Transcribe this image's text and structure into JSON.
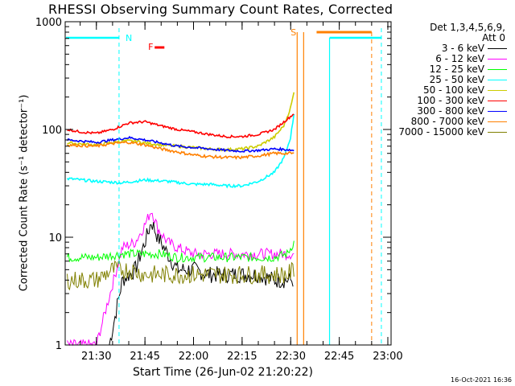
{
  "chart_data": {
    "type": "line",
    "title": "RHESSI Observing Summary Count Rates, Corrected",
    "ylabel": "Corrected Count Rate (s⁻¹ detector⁻¹)",
    "xlabel": "Start Time (26-Jun-02 21:20:22)",
    "yscale": "log",
    "ylim": [
      1,
      1000
    ],
    "xlim": [
      "21:20:22",
      "23:01:00"
    ],
    "xticks": [
      "21:30",
      "21:45",
      "22:00",
      "22:15",
      "22:30",
      "22:45",
      "23:00"
    ],
    "yticks": [
      "1",
      "10",
      "100",
      "1000"
    ],
    "legend_header": [
      "Det 1,3,4,5,6,9,",
      "Att 0"
    ],
    "legend_position": "outside-right",
    "timestamp": "16-Oct-2021 16:36",
    "flags": {
      "N": "N",
      "F": "F",
      "S": "S"
    },
    "series": [
      {
        "name": "3 - 6 keV",
        "color": "#000000",
        "times": [
          "21:34",
          "21:38",
          "21:42",
          "21:45",
          "21:47",
          "21:49",
          "21:52",
          "21:55",
          "22:00",
          "22:05",
          "22:10",
          "22:15",
          "22:20",
          "22:25",
          "22:29",
          "22:31"
        ],
        "values": [
          1.0,
          4,
          5,
          9,
          14,
          10,
          7,
          5,
          5,
          4.5,
          4.5,
          4.5,
          4.5,
          4,
          4,
          4
        ]
      },
      {
        "name": "6 - 12 keV",
        "color": "#ff00ff",
        "times": [
          "21:21",
          "21:30",
          "21:38",
          "21:42",
          "21:45",
          "21:47",
          "21:49",
          "21:52",
          "21:55",
          "22:00",
          "22:05",
          "22:10",
          "22:15",
          "22:20",
          "22:25",
          "22:29",
          "22:31"
        ],
        "values": [
          1.0,
          1.0,
          8,
          9,
          13,
          18,
          12,
          9,
          8,
          7,
          7,
          7,
          7,
          7,
          7,
          7,
          7
        ]
      },
      {
        "name": "12 - 25 keV",
        "color": "#00ff00",
        "times": [
          "21:21",
          "21:30",
          "21:38",
          "21:45",
          "21:50",
          "21:55",
          "22:00",
          "22:05",
          "22:10",
          "22:15",
          "22:20",
          "22:25",
          "22:29",
          "22:31"
        ],
        "values": [
          6.5,
          6.5,
          7,
          7,
          7,
          6.5,
          6.5,
          6.5,
          6.5,
          6.5,
          6.5,
          6.5,
          7,
          9
        ]
      },
      {
        "name": "25 - 50 keV",
        "color": "#00ffff",
        "times": [
          "21:21",
          "21:30",
          "21:38",
          "21:45",
          "21:52",
          "22:00",
          "22:05",
          "22:10",
          "22:15",
          "22:20",
          "22:25",
          "22:28",
          "22:30",
          "22:31"
        ],
        "values": [
          35,
          33,
          32,
          34,
          33,
          31,
          31,
          30,
          30,
          33,
          40,
          55,
          85,
          140
        ]
      },
      {
        "name": "50 - 100 keV",
        "color": "#cccc00",
        "times": [
          "21:21",
          "21:30",
          "21:38",
          "21:42",
          "21:45",
          "21:50",
          "21:55",
          "22:00",
          "22:05",
          "22:10",
          "22:15",
          "22:20",
          "22:25",
          "22:28",
          "22:30",
          "22:31"
        ],
        "values": [
          75,
          72,
          78,
          78,
          75,
          72,
          70,
          68,
          66,
          65,
          66,
          70,
          85,
          110,
          160,
          220
        ]
      },
      {
        "name": "100 - 300 keV",
        "color": "#ff0000",
        "times": [
          "21:21",
          "21:25",
          "21:30",
          "21:35",
          "21:40",
          "21:45",
          "21:50",
          "21:55",
          "22:00",
          "22:05",
          "22:10",
          "22:15",
          "22:20",
          "22:25",
          "22:29",
          "22:31"
        ],
        "values": [
          100,
          95,
          92,
          100,
          115,
          118,
          108,
          100,
          95,
          90,
          86,
          86,
          90,
          100,
          125,
          140
        ]
      },
      {
        "name": "300 - 800 keV",
        "color": "#0000ff",
        "times": [
          "21:21",
          "21:30",
          "21:35",
          "21:40",
          "21:45",
          "21:50",
          "21:55",
          "22:00",
          "22:05",
          "22:10",
          "22:15",
          "22:20",
          "22:25",
          "22:29",
          "22:31"
        ],
        "values": [
          80,
          76,
          80,
          84,
          80,
          75,
          70,
          68,
          66,
          64,
          63,
          64,
          66,
          65,
          64
        ]
      },
      {
        "name": "800 - 7000 keV",
        "color": "#ff8000",
        "times": [
          "21:21",
          "21:30",
          "21:35",
          "21:40",
          "21:45",
          "21:50",
          "21:55",
          "22:00",
          "22:05",
          "22:10",
          "22:15",
          "22:20",
          "22:25",
          "22:29",
          "22:31"
        ],
        "values": [
          72,
          70,
          74,
          76,
          72,
          66,
          62,
          58,
          56,
          55,
          55,
          57,
          60,
          60,
          60
        ]
      },
      {
        "name": "7000 - 15000 keV",
        "color": "#808000",
        "times": [
          "21:21",
          "21:30",
          "21:35",
          "21:40",
          "21:45",
          "21:50",
          "21:55",
          "22:00",
          "22:05",
          "22:10",
          "22:15",
          "22:20",
          "22:25",
          "22:29",
          "22:31"
        ],
        "values": [
          4,
          4,
          5,
          5,
          4.5,
          4.5,
          4.5,
          4.5,
          4.5,
          4.5,
          4.5,
          4.5,
          4.5,
          4.5,
          5
        ]
      }
    ]
  }
}
